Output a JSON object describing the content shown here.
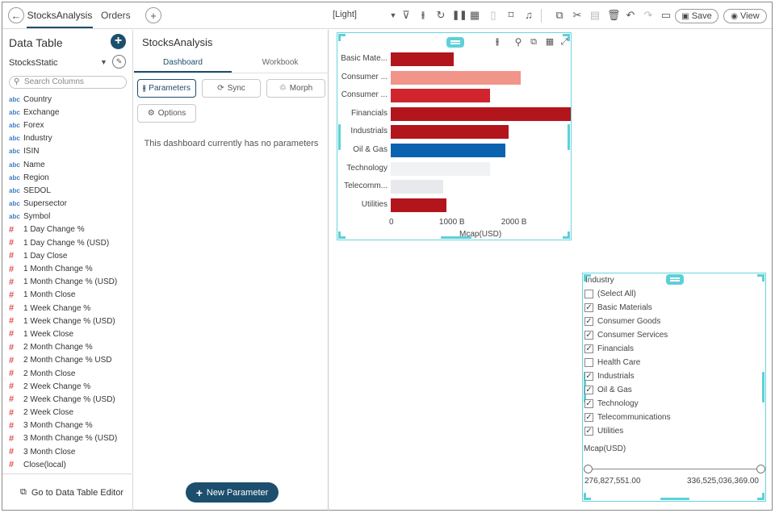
{
  "topbar": {
    "tabs": [
      "StocksAnalysis",
      "Orders"
    ],
    "theme": "[Light]",
    "save_label": "Save",
    "view_label": "View"
  },
  "data_table": {
    "title": "Data Table",
    "source": "StocksStatic",
    "search_placeholder": "Search Columns",
    "columns": [
      {
        "type": "abc",
        "name": "Country"
      },
      {
        "type": "abc",
        "name": "Exchange"
      },
      {
        "type": "abc",
        "name": "Forex"
      },
      {
        "type": "abc",
        "name": "Industry"
      },
      {
        "type": "abc",
        "name": "ISIN"
      },
      {
        "type": "abc",
        "name": "Name"
      },
      {
        "type": "abc",
        "name": "Region"
      },
      {
        "type": "abc",
        "name": "SEDOL"
      },
      {
        "type": "abc",
        "name": "Supersector"
      },
      {
        "type": "abc",
        "name": "Symbol"
      },
      {
        "type": "#",
        "name": "1 Day Change %"
      },
      {
        "type": "#",
        "name": "1 Day Change % (USD)"
      },
      {
        "type": "#",
        "name": "1 Day Close"
      },
      {
        "type": "#",
        "name": "1 Month Change %"
      },
      {
        "type": "#",
        "name": "1 Month Change % (USD)"
      },
      {
        "type": "#",
        "name": "1 Month Close"
      },
      {
        "type": "#",
        "name": "1 Week Change %"
      },
      {
        "type": "#",
        "name": "1 Week Change % (USD)"
      },
      {
        "type": "#",
        "name": "1 Week Close"
      },
      {
        "type": "#",
        "name": "2 Month Change %"
      },
      {
        "type": "#",
        "name": "2 Month Change % USD"
      },
      {
        "type": "#",
        "name": "2 Month Close"
      },
      {
        "type": "#",
        "name": "2 Week Change %"
      },
      {
        "type": "#",
        "name": "2 Week Change % (USD)"
      },
      {
        "type": "#",
        "name": "2 Week Close"
      },
      {
        "type": "#",
        "name": "3 Month Change %"
      },
      {
        "type": "#",
        "name": "3 Month Change % (USD)"
      },
      {
        "type": "#",
        "name": "3 Month Close"
      },
      {
        "type": "#",
        "name": "Close(local)"
      }
    ],
    "footer_link": "Go to Data Table Editor"
  },
  "dashboard_panel": {
    "title": "StocksAnalysis",
    "tabs": [
      "Dashboard",
      "Workbook"
    ],
    "buttons": {
      "parameters": "Parameters",
      "sync": "Sync",
      "morph": "Morph",
      "options": "Options"
    },
    "empty_message": "This dashboard currently has no parameters",
    "new_parameter": "New Parameter"
  },
  "chart_data": {
    "type": "bar",
    "orientation": "horizontal",
    "categories": [
      "Basic Mate...",
      "Consumer ...",
      "Consumer ...",
      "Financials",
      "Industrials",
      "Oil & Gas",
      "Technology",
      "Telecomm...",
      "Utilities"
    ],
    "values": [
      1.02,
      2.1,
      1.6,
      2.9,
      1.9,
      1.85,
      1.6,
      0.85,
      0.9
    ],
    "colors": [
      "#b3151c",
      "#f1958a",
      "#d0252d",
      "#b3151c",
      "#b3151c",
      "#0b62b0",
      "#f1f2f3",
      "#e7e9ec",
      "#b3151c"
    ],
    "x_ticks": [
      "0",
      "1000 B",
      "2000 B"
    ],
    "xlabel": "Mcap(USD)",
    "xlim": [
      0,
      2.9
    ]
  },
  "filter": {
    "title": "Industry",
    "items": [
      {
        "label": "(Select All)",
        "checked": false
      },
      {
        "label": "Basic Materials",
        "checked": true
      },
      {
        "label": "Consumer Goods",
        "checked": true
      },
      {
        "label": "Consumer Services",
        "checked": true
      },
      {
        "label": "Financials",
        "checked": true
      },
      {
        "label": "Health Care",
        "checked": false
      },
      {
        "label": "Industrials",
        "checked": true
      },
      {
        "label": "Oil & Gas",
        "checked": true
      },
      {
        "label": "Technology",
        "checked": true
      },
      {
        "label": "Telecommunications",
        "checked": true
      },
      {
        "label": "Utilities",
        "checked": true
      }
    ],
    "range_title": "Mcap(USD)",
    "range_min": "276,827,551.00",
    "range_max": "336,525,036,369.00"
  }
}
